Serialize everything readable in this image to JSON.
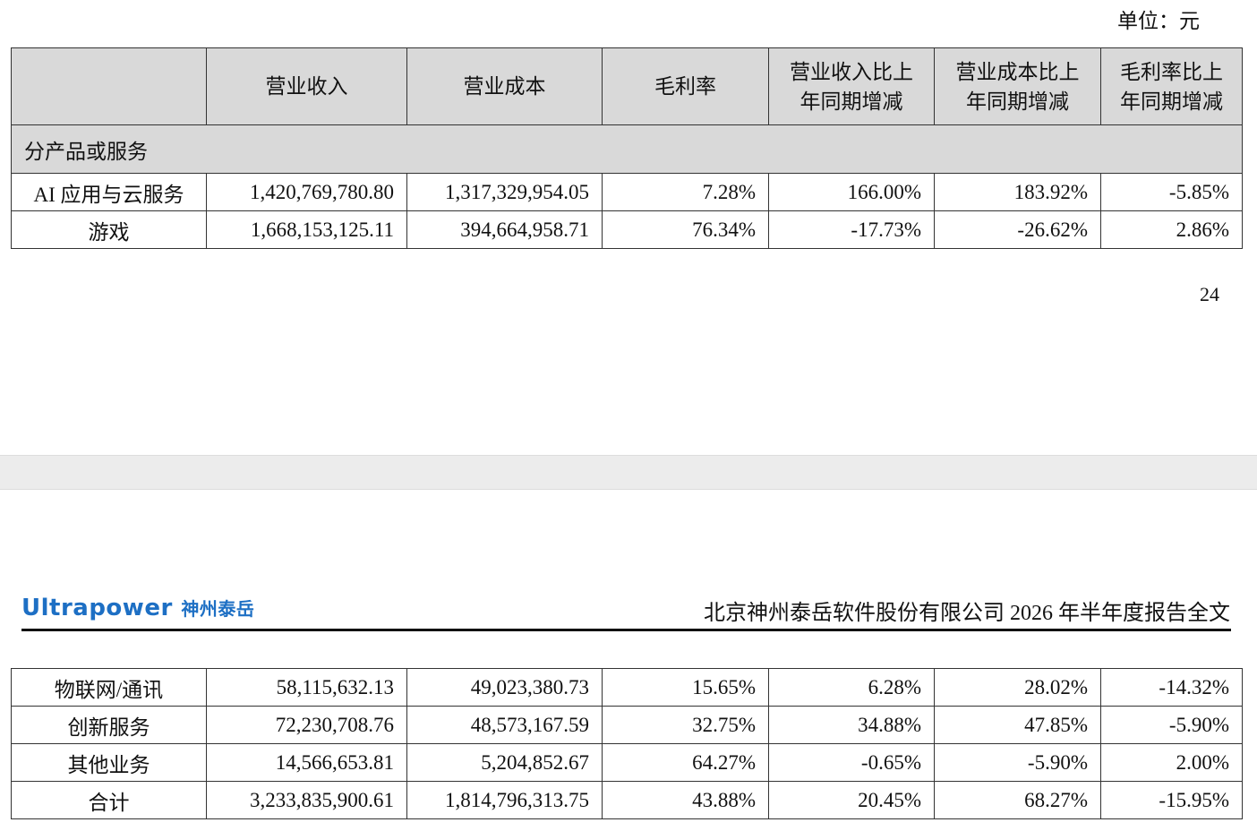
{
  "unit": "单位：元",
  "table_top": {
    "header": [
      "营业收入",
      "营业成本",
      "毛利率",
      "营业收入比上年同期增减",
      "营业成本比上年同期增减",
      "毛利率比上年同期增减"
    ],
    "section": "分产品或服务",
    "rows": [
      [
        "AI 应用与云服务",
        "1,420,769,780.80",
        "1,317,329,954.05",
        "7.28%",
        "166.00%",
        "183.92%",
        "-5.85%"
      ],
      [
        "游戏",
        "1,668,153,125.11",
        "394,664,958.71",
        "76.34%",
        "-17.73%",
        "-26.62%",
        "2.86%"
      ]
    ]
  },
  "page_number": "24",
  "page_header": {
    "logo_en": "Ultrapower",
    "logo_cn": "神州泰岳",
    "title": "北京神州泰岳软件股份有限公司 2026 年半年度报告全文"
  },
  "table_bottom": {
    "rows": [
      [
        "物联网/通讯",
        "58,115,632.13",
        "49,023,380.73",
        "15.65%",
        "6.28%",
        "28.02%",
        "-14.32%"
      ],
      [
        "创新服务",
        "72,230,708.76",
        "48,573,167.59",
        "32.75%",
        "34.88%",
        "47.85%",
        "-5.90%"
      ],
      [
        "其他业务",
        "14,566,653.81",
        "5,204,852.67",
        "64.27%",
        "-0.65%",
        "-5.90%",
        "2.00%"
      ],
      [
        "合计",
        "3,233,835,900.61",
        "1,814,796,313.75",
        "43.88%",
        "20.45%",
        "68.27%",
        "-15.95%"
      ]
    ]
  }
}
